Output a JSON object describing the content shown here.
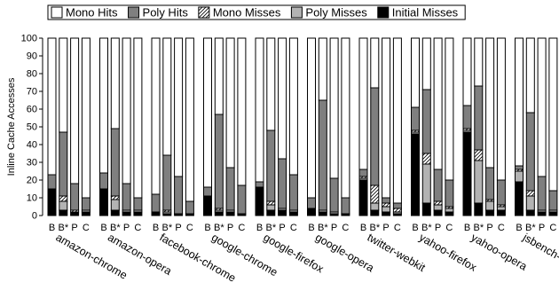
{
  "chart_data": {
    "type": "bar",
    "stacked": true,
    "ylabel": "Inline Cache Accesses",
    "ylim": [
      0,
      100
    ],
    "yticks": [
      0,
      10,
      20,
      30,
      40,
      50,
      60,
      70,
      80,
      90,
      100
    ],
    "grid": false,
    "legend_position": "top",
    "bar_labels": [
      "B",
      "B*",
      "P",
      "C"
    ],
    "series": [
      {
        "name": "Initial Misses",
        "fill": "#000000",
        "pattern": "none"
      },
      {
        "name": "Poly Misses",
        "fill": "#b3b3b3",
        "pattern": "none"
      },
      {
        "name": "Mono Misses",
        "fill": "#ffffff",
        "pattern": "hatch"
      },
      {
        "name": "Poly Hits",
        "fill": "#7f7f7f",
        "pattern": "none"
      },
      {
        "name": "Mono Hits",
        "fill": "#ffffff",
        "pattern": "none"
      }
    ],
    "legend_order": [
      "Mono Hits",
      "Poly Hits",
      "Mono Misses",
      "Poly Misses",
      "Initial Misses"
    ],
    "groups": [
      {
        "name": "amazon-chrome",
        "bars": [
          {
            "label": "B",
            "values": [
              15,
              0,
              0,
              8,
              77
            ]
          },
          {
            "label": "B*",
            "values": [
              3,
              5,
              3,
              36,
              53
            ]
          },
          {
            "label": "P",
            "values": [
              2,
              0,
              1,
              15,
              82
            ]
          },
          {
            "label": "C",
            "values": [
              2,
              1,
              0,
              7,
              90
            ]
          }
        ]
      },
      {
        "name": "amazon-opera",
        "bars": [
          {
            "label": "B",
            "values": [
              15,
              0,
              0,
              9,
              76
            ]
          },
          {
            "label": "B*",
            "values": [
              3,
              6,
              2,
              38,
              51
            ]
          },
          {
            "label": "P",
            "values": [
              2,
              1,
              0,
              15,
              82
            ]
          },
          {
            "label": "C",
            "values": [
              2,
              1,
              0,
              7,
              90
            ]
          }
        ]
      },
      {
        "name": "facebook-chrome",
        "bars": [
          {
            "label": "B",
            "values": [
              2,
              0,
              0,
              10,
              88
            ]
          },
          {
            "label": "B*",
            "values": [
              1,
              1,
              1,
              31,
              66
            ]
          },
          {
            "label": "P",
            "values": [
              1,
              0,
              0,
              21,
              78
            ]
          },
          {
            "label": "C",
            "values": [
              1,
              0,
              0,
              7,
              92
            ]
          }
        ]
      },
      {
        "name": "google-chrome",
        "bars": [
          {
            "label": "B",
            "values": [
              11,
              0,
              0,
              5,
              84
            ]
          },
          {
            "label": "B*",
            "values": [
              2,
              1,
              1,
              53,
              43
            ]
          },
          {
            "label": "P",
            "values": [
              2,
              1,
              0,
              24,
              73
            ]
          },
          {
            "label": "C",
            "values": [
              1,
              0,
              0,
              16,
              83
            ]
          }
        ]
      },
      {
        "name": "google-firefox",
        "bars": [
          {
            "label": "B",
            "values": [
              16,
              0,
              0,
              3,
              81
            ]
          },
          {
            "label": "B*",
            "values": [
              3,
              3,
              2,
              40,
              52
            ]
          },
          {
            "label": "P",
            "values": [
              3,
              1,
              0,
              28,
              68
            ]
          },
          {
            "label": "C",
            "values": [
              2,
              1,
              0,
              20,
              77
            ]
          }
        ]
      },
      {
        "name": "google-opera",
        "bars": [
          {
            "label": "B",
            "values": [
              4,
              0,
              0,
              6,
              90
            ]
          },
          {
            "label": "B*",
            "values": [
              2,
              1,
              0,
              62,
              35
            ]
          },
          {
            "label": "P",
            "values": [
              1,
              1,
              0,
              19,
              79
            ]
          },
          {
            "label": "C",
            "values": [
              1,
              0,
              0,
              9,
              90
            ]
          }
        ]
      },
      {
        "name": "twitter-webkit",
        "bars": [
          {
            "label": "B",
            "values": [
              20,
              1,
              1,
              4,
              74
            ]
          },
          {
            "label": "B*",
            "values": [
              3,
              4,
              10,
              55,
              28
            ]
          },
          {
            "label": "P",
            "values": [
              2,
              3,
              2,
              3,
              90
            ]
          },
          {
            "label": "C",
            "values": [
              1,
              1,
              2,
              3,
              93
            ]
          }
        ]
      },
      {
        "name": "yahoo-firefox",
        "bars": [
          {
            "label": "B",
            "values": [
              46,
              1,
              1,
              13,
              39
            ]
          },
          {
            "label": "B*",
            "values": [
              7,
              22,
              6,
              36,
              29
            ]
          },
          {
            "label": "P",
            "values": [
              3,
              3,
              2,
              18,
              74
            ]
          },
          {
            "label": "C",
            "values": [
              2,
              2,
              1,
              15,
              80
            ]
          }
        ]
      },
      {
        "name": "yahoo-opera",
        "bars": [
          {
            "label": "B",
            "values": [
              47,
              1,
              1,
              13,
              38
            ]
          },
          {
            "label": "B*",
            "values": [
              7,
              24,
              6,
              36,
              27
            ]
          },
          {
            "label": "P",
            "values": [
              3,
              5,
              1,
              18,
              73
            ]
          },
          {
            "label": "C",
            "values": [
              3,
              2,
              1,
              14,
              80
            ]
          }
        ]
      },
      {
        "name": "jsbench-am",
        "bars": [
          {
            "label": "B",
            "values": [
              19,
              6,
              1,
              2,
              72
            ]
          },
          {
            "label": "B*",
            "values": [
              3,
              8,
              3,
              44,
              42
            ]
          },
          {
            "label": "P",
            "values": [
              2,
              1,
              0,
              19,
              78
            ]
          },
          {
            "label": "C",
            "values": [
              2,
              1,
              0,
              11,
              86
            ]
          }
        ]
      }
    ]
  }
}
